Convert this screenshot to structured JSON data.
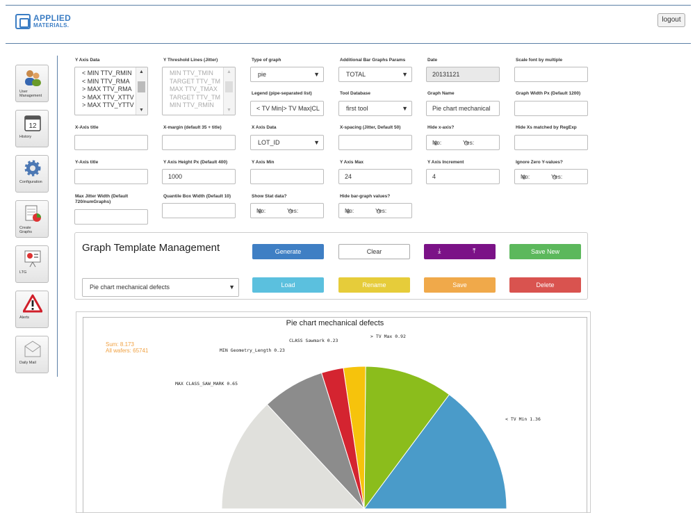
{
  "header": {
    "logo_line1": "APPLIED",
    "logo_line2": "MATERIALS.",
    "logout_label": "logout"
  },
  "sidebar": {
    "items": [
      {
        "label": "User Management",
        "icon": "users-icon"
      },
      {
        "label": "History",
        "icon": "calendar-icon"
      },
      {
        "label": "Configuration",
        "icon": "gear-icon"
      },
      {
        "label": "Create Graphs",
        "icon": "chart-document-icon"
      },
      {
        "label": "LTG",
        "icon": "presentation-icon"
      },
      {
        "label": "Alerts",
        "icon": "warning-icon"
      },
      {
        "label": "Daily Mail",
        "icon": "mail-icon"
      }
    ]
  },
  "form": {
    "y_axis_data": {
      "label": "Y Axis Data",
      "items": [
        "< MIN TTV_RMIN",
        "< MIN TTV_RMA",
        "> MAX TTV_RMA",
        "> MAX TTV_XTTV",
        "> MAX TTV_YTTV"
      ]
    },
    "y_threshold": {
      "label": "Y Threshold Lines (Jitter)",
      "items": [
        "MIN TTV_TMIN",
        "TARGET TTV_TM",
        "MAX TTV_TMAX",
        "TARGET TTV_TM",
        "MIN TTV_RMIN"
      ]
    },
    "type_of_graph": {
      "label": "Type of graph",
      "value": "pie"
    },
    "additional_bar": {
      "label": "Additional Bar Graphs Params",
      "value": "TOTAL"
    },
    "date": {
      "label": "Date",
      "value": "20131121"
    },
    "scale_font": {
      "label": "Scale font by multiple",
      "value": ""
    },
    "legend": {
      "label": "Legend (pipe-separated list)",
      "value": "< TV Min|> TV Max|CL"
    },
    "tool_database": {
      "label": "Tool Database",
      "value": "first tool"
    },
    "graph_name": {
      "label": "Graph Name",
      "value": "Pie chart mechanical"
    },
    "graph_width": {
      "label": "Graph Width Px (Default 1200)",
      "value": ""
    },
    "x_axis_title": {
      "label": "X-Axis title",
      "value": ""
    },
    "x_margin": {
      "label": "X-margin (default 35 + title)",
      "value": ""
    },
    "x_axis_data": {
      "label": "X Axis Data",
      "value": "LOT_ID"
    },
    "x_spacing": {
      "label": "X-spacing (Jitter, Default 50)",
      "value": ""
    },
    "hide_x_axis": {
      "label": "Hide x-axis?",
      "no": "No:",
      "yes": "Yes:"
    },
    "hide_xs": {
      "label": "Hide Xs matched by RegExp",
      "value": ""
    },
    "y_axis_title": {
      "label": "Y-Axis title",
      "value": ""
    },
    "y_axis_height": {
      "label": "Y Axis Height Px (Default 400)",
      "value": "1000"
    },
    "y_axis_min": {
      "label": "Y Axis Min",
      "value": ""
    },
    "y_axis_max": {
      "label": "Y Axis Max",
      "value": "24"
    },
    "y_axis_increment": {
      "label": "Y Axis Increment",
      "value": "4"
    },
    "ignore_zero": {
      "label": "Ignore Zero Y-values?",
      "no": "No:",
      "yes": "Yes:"
    },
    "max_jitter": {
      "label": "Max Jitter Width (Default 720/numGraphs)",
      "value": ""
    },
    "quantile_box": {
      "label": "Quantile Box Width (Default 10)",
      "value": ""
    },
    "show_stat": {
      "label": "Show Stat data?",
      "no": "No:",
      "yes": "Yes:"
    },
    "hide_bar_values": {
      "label": "Hide bar-graph values?",
      "no": "No:",
      "yes": "Yes:"
    }
  },
  "template_panel": {
    "title": "Graph Template Management",
    "selected_template": "Pie chart mechanical defects",
    "buttons": {
      "generate": "Generate",
      "clear": "Clear",
      "download_icon": "download-icon",
      "upload_icon": "upload-icon",
      "save_new": "Save New",
      "load": "Load",
      "rename": "Rename",
      "save": "Save",
      "delete": "Delete"
    },
    "colors": {
      "generate": "#3f7fc4",
      "purple": "#7b1287",
      "save_new": "#5cb85c",
      "load": "#5bc0de",
      "rename": "#e6cc3a",
      "save": "#f0a94a",
      "delete": "#d9534f"
    }
  },
  "chart_data": {
    "type": "pie",
    "title": "Pie chart mechanical defects",
    "stats": {
      "sum": "Sum: 8.173",
      "all_wafers": "All wafers: 65741"
    },
    "labels": [
      "< TV Min 1.36",
      "> TV Max 0.92",
      "CLASS Sawmark 0.23",
      "MIN Geometry_Length 0.23",
      "MAX CLASS_SAW_MARK 0.65"
    ],
    "slices": [
      {
        "name": "< TV Min",
        "value": 1.36,
        "color": "#4a9bc9"
      },
      {
        "name": "> TV Max",
        "value": 0.92,
        "color": "#8bbd1c"
      },
      {
        "name": "CLASS Sawmark",
        "value": 0.23,
        "color": "#f6c30c"
      },
      {
        "name": "MIN Geometry_Length",
        "value": 0.23,
        "color": "#d42430"
      },
      {
        "name": "MAX CLASS_SAW_MARK",
        "value": 0.65,
        "color": "#8c8c8c"
      },
      {
        "name": "",
        "value": 1.2,
        "color": "#e0e0dc"
      }
    ]
  }
}
